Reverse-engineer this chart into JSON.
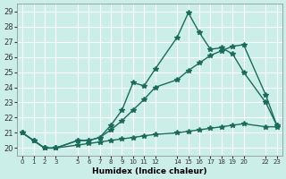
{
  "xlabel": "Humidex (Indice chaleur)",
  "ylabel": "",
  "background_color": "#cceee8",
  "grid_color": "#ffffff",
  "line_color": "#1a6b5a",
  "ylim": [
    19.5,
    29.5
  ],
  "xlim": [
    -0.5,
    23.5
  ],
  "yticks": [
    20,
    21,
    22,
    23,
    24,
    25,
    26,
    27,
    28,
    29
  ],
  "xticks": [
    0,
    1,
    2,
    3,
    5,
    6,
    7,
    8,
    9,
    10,
    11,
    12,
    14,
    15,
    16,
    17,
    18,
    19,
    20,
    22,
    23
  ],
  "xtick_labels": [
    "0",
    "1",
    "2",
    "3",
    "5",
    "6",
    "7",
    "8",
    "9",
    "10",
    "11",
    "12",
    "14",
    "15",
    "16",
    "17",
    "18",
    "19",
    "20",
    "22",
    "23"
  ],
  "line1_x": [
    0,
    1,
    2,
    3,
    5,
    6,
    7,
    8,
    9,
    10,
    11,
    12,
    14,
    15,
    16,
    17,
    18,
    19,
    20,
    22,
    23
  ],
  "line1_y": [
    21.0,
    20.5,
    20.0,
    20.0,
    20.5,
    20.5,
    20.7,
    21.5,
    22.5,
    24.3,
    24.1,
    25.2,
    27.3,
    28.9,
    27.6,
    26.5,
    26.6,
    26.2,
    25.0,
    23.0,
    21.5
  ],
  "line2_x": [
    0,
    1,
    2,
    3,
    5,
    6,
    7,
    8,
    9,
    10,
    11,
    12,
    14,
    15,
    16,
    17,
    18,
    19,
    20,
    22,
    23
  ],
  "line2_y": [
    21.0,
    20.5,
    20.0,
    20.0,
    20.5,
    20.5,
    20.7,
    21.2,
    21.8,
    22.5,
    23.2,
    24.0,
    24.5,
    25.1,
    25.6,
    26.1,
    26.4,
    26.7,
    26.8,
    23.5,
    21.5
  ],
  "line3_x": [
    0,
    1,
    2,
    3,
    5,
    6,
    7,
    8,
    9,
    10,
    11,
    12,
    14,
    15,
    16,
    17,
    18,
    19,
    20,
    22,
    23
  ],
  "line3_y": [
    21.0,
    20.5,
    20.0,
    20.0,
    20.2,
    20.3,
    20.4,
    20.5,
    20.6,
    20.7,
    20.8,
    20.9,
    21.0,
    21.1,
    21.2,
    21.3,
    21.4,
    21.5,
    21.6,
    21.4,
    21.4
  ]
}
